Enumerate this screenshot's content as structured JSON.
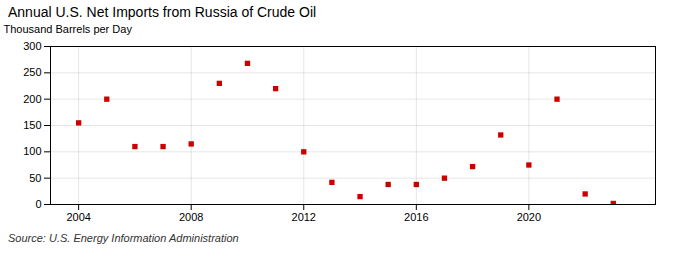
{
  "chart_data": {
    "type": "scatter",
    "title": "Annual U.S. Net Imports from Russia of Crude Oil",
    "ylabel": "Thousand Barrels per Day",
    "source": "Source: U.S. Energy Information Administration",
    "x": [
      2004,
      2005,
      2006,
      2007,
      2008,
      2009,
      2010,
      2011,
      2012,
      2013,
      2014,
      2015,
      2016,
      2017,
      2018,
      2019,
      2020,
      2021,
      2022,
      2023
    ],
    "values": [
      155,
      200,
      110,
      110,
      115,
      230,
      268,
      220,
      100,
      42,
      15,
      38,
      38,
      50,
      72,
      132,
      75,
      200,
      20,
      2
    ],
    "color": "#cc0000",
    "marker": "square",
    "xlim": [
      2003.0,
      2024.5
    ],
    "xticks": [
      2004,
      2008,
      2012,
      2016,
      2020
    ],
    "ylim": [
      0,
      300
    ],
    "yticks": [
      0,
      50,
      100,
      150,
      200,
      250,
      300
    ],
    "grid": true
  }
}
